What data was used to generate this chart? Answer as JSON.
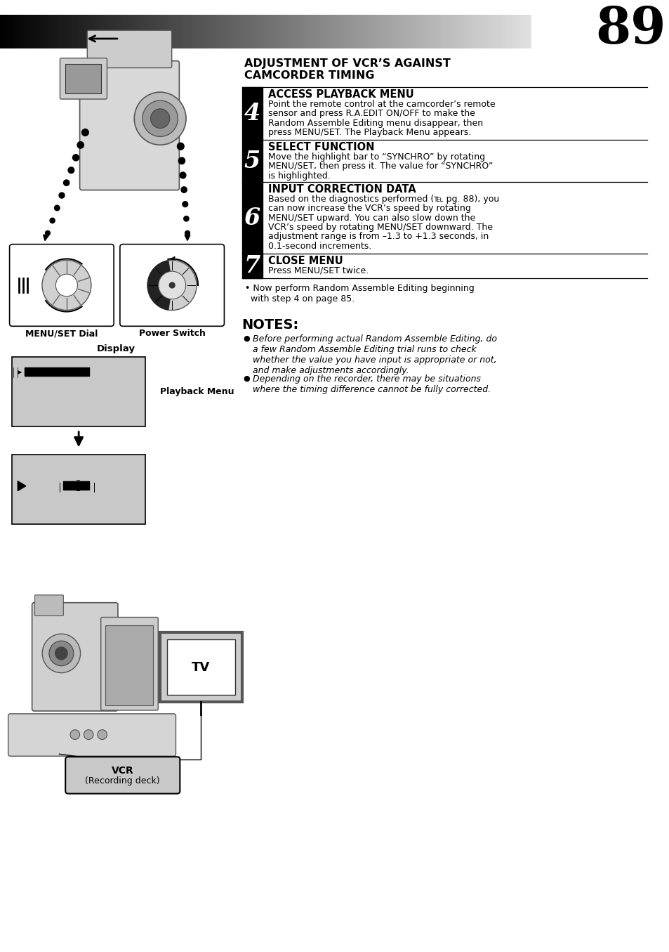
{
  "page_number": "89",
  "bg_color": "#ffffff",
  "header_title_line1": "ADJUSTMENT OF VCR’S AGAINST",
  "header_title_line2": "CAMCORDER TIMING",
  "steps": [
    {
      "number": "4",
      "title": "ACCESS PLAYBACK MENU",
      "body_parts": [
        {
          "text": "Point the remote control at the camcorder’s remote\nsensor and press ",
          "bold": false
        },
        {
          "text": "R.A.EDIT ON/OFF",
          "bold": true
        },
        {
          "text": " to make the\nRandom Assemble Editing menu disappear, then\npress ",
          "bold": false
        },
        {
          "text": "MENU/SET",
          "bold": true
        },
        {
          "text": ". The Playback Menu appears.",
          "bold": false
        }
      ],
      "body": "Point the remote control at the camcorder’s remote\nsensor and press R.A.EDIT ON/OFF to make the\nRandom Assemble Editing menu disappear, then\npress MENU/SET. The Playback Menu appears."
    },
    {
      "number": "5",
      "title": "SELECT FUNCTION",
      "body": "Move the highlight bar to “SYNCHRO” by rotating\nMENU/SET, then press it. The value for “SYNCHRO”\nis highlighted."
    },
    {
      "number": "6",
      "title": "INPUT CORRECTION DATA",
      "body": "Based on the diagnostics performed (℡ pg. 88), you\ncan now increase the VCR’s speed by rotating\nMENU/SET upward. You can also slow down the\nVCR’s speed by rotating MENU/SET downward. The\nadjustment range is from –1.3 to +1.3 seconds, in\n0.1-second increments."
    },
    {
      "number": "7",
      "title": "CLOSE MENU",
      "body": "Press MENU/SET twice."
    }
  ],
  "bullet_step": "• Now perform Random Assemble Editing beginning\n  with step 4 on page 85.",
  "notes_title": "NOTES:",
  "note1": "Before performing actual Random Assemble Editing, do\na few Random Assemble Editing trial runs to check\nwhether the value you have input is appropriate or not,\nand make adjustments accordingly.",
  "note2": "Depending on the recorder, there may be situations\nwhere the timing difference cannot be fully corrected.",
  "label_dial": "MENU/SET Dial",
  "label_power": "Power Switch",
  "label_display": "Display",
  "label_playback": "Playback Menu",
  "label_tv": "TV",
  "label_vcr": "VCR\n(Recording deck)"
}
